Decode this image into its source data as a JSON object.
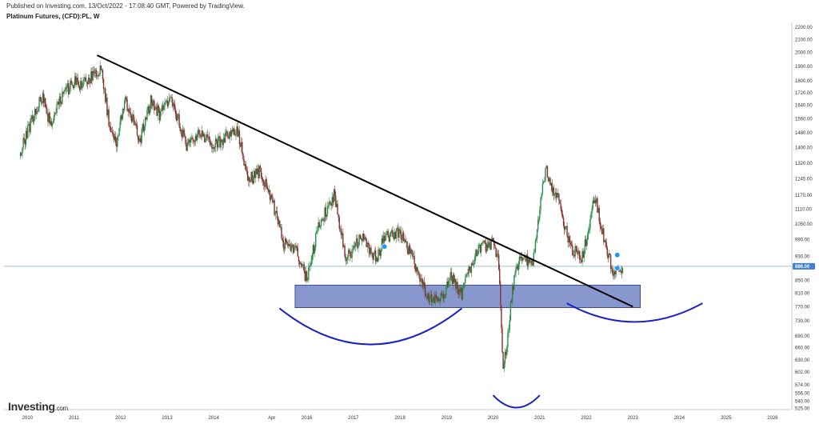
{
  "header": {
    "published": "Published on Investing.com, 13/Oct/2022 - 17:08:40 GMT, Powered by TradingView.",
    "title": "Platinum Futures, (CFD):PL, W"
  },
  "logo": {
    "name": "Investing",
    "suffix": ".com"
  },
  "colors": {
    "candle_up": "#2a8c4a",
    "candle_down": "#8b2e2e",
    "trendline": "#000000",
    "support_zone": "#7b8cc8",
    "arcs": "#1a22c8",
    "last_price_line": "#9fc4d8",
    "badge": "#3d7fd8"
  },
  "chart_data": {
    "type": "candlestick",
    "title": "Platinum Futures, (CFD):PL, W",
    "y_axis": {
      "scale": "log",
      "ylim": [
        523,
        2240
      ],
      "ticks": [
        525.0,
        540.0,
        556.0,
        574.0,
        602.0,
        630.0,
        660.0,
        690.0,
        730.0,
        770.0,
        810.0,
        850.0,
        896.0,
        930.0,
        990.0,
        1050.0,
        1110.0,
        1170.0,
        1245.0,
        1320.0,
        1400.0,
        1480.0,
        1560.0,
        1640.0,
        1720.0,
        1800.0,
        1900.0,
        2000.0,
        2100.0,
        2200.0
      ],
      "tick_labels": [
        "525.00",
        "540.00",
        "556.00",
        "574.00",
        "602.00",
        "630.00",
        "660.00",
        "690.00",
        "730.00",
        "770.00",
        "810.00",
        "850.00",
        "896.00",
        "930.00",
        "990.00",
        "1050.00",
        "1110.00",
        "1170.00",
        "1245.00",
        "1320.00",
        "1400.00",
        "1480.00",
        "1560.00",
        "1640.00",
        "1720.00",
        "1800.00",
        "1900.00",
        "2000.00",
        "2100.00",
        "2200.00"
      ]
    },
    "x_axis": {
      "xlim": [
        "2009-07-01",
        "2026-06-01"
      ],
      "ticks": [
        "2010",
        "2011",
        "2012",
        "2013",
        "2014",
        "Apr",
        "2016",
        "2017",
        "2018",
        "2019",
        "2020",
        "2021",
        "2022",
        "2023",
        "2024",
        "2025",
        "2026"
      ],
      "tick_dates": [
        "2010-01-01",
        "2011-01-01",
        "2012-01-01",
        "2013-01-01",
        "2014-01-01",
        "2015-04-01",
        "2016-01-01",
        "2017-01-01",
        "2018-01-01",
        "2019-01-01",
        "2020-01-01",
        "2021-01-01",
        "2022-01-01",
        "2023-01-01",
        "2024-01-01",
        "2025-01-01",
        "2026-01-01"
      ]
    },
    "last_price": {
      "value": 896.0,
      "label": "896.00"
    },
    "series_path": [
      [
        "2009-11-01",
        1360
      ],
      [
        "2010-02-01",
        1550
      ],
      [
        "2010-05-01",
        1700
      ],
      [
        "2010-07-01",
        1520
      ],
      [
        "2010-10-01",
        1700
      ],
      [
        "2011-01-01",
        1790
      ],
      [
        "2011-03-01",
        1770
      ],
      [
        "2011-05-01",
        1810
      ],
      [
        "2011-08-01",
        1880
      ],
      [
        "2011-10-01",
        1550
      ],
      [
        "2011-12-01",
        1420
      ],
      [
        "2012-02-01",
        1680
      ],
      [
        "2012-06-01",
        1440
      ],
      [
        "2012-09-01",
        1680
      ],
      [
        "2012-11-01",
        1580
      ],
      [
        "2013-02-01",
        1700
      ],
      [
        "2013-06-01",
        1400
      ],
      [
        "2013-09-01",
        1480
      ],
      [
        "2014-01-01",
        1410
      ],
      [
        "2014-07-01",
        1500
      ],
      [
        "2014-10-01",
        1240
      ],
      [
        "2015-01-01",
        1280
      ],
      [
        "2015-04-01",
        1150
      ],
      [
        "2015-07-01",
        980
      ],
      [
        "2015-10-01",
        960
      ],
      [
        "2016-01-01",
        850
      ],
      [
        "2016-04-01",
        1040
      ],
      [
        "2016-08-01",
        1170
      ],
      [
        "2016-11-01",
        920
      ],
      [
        "2017-03-01",
        1000
      ],
      [
        "2017-07-01",
        920
      ],
      [
        "2017-09-01",
        1000
      ],
      [
        "2018-01-01",
        1020
      ],
      [
        "2018-05-01",
        900
      ],
      [
        "2018-08-01",
        800
      ],
      [
        "2018-12-01",
        800
      ],
      [
        "2019-02-01",
        860
      ],
      [
        "2019-05-01",
        810
      ],
      [
        "2019-09-01",
        960
      ],
      [
        "2020-01-01",
        980
      ],
      [
        "2020-02-15",
        900
      ],
      [
        "2020-03-20",
        595
      ],
      [
        "2020-06-01",
        820
      ],
      [
        "2020-08-01",
        940
      ],
      [
        "2020-11-01",
        900
      ],
      [
        "2021-01-01",
        1100
      ],
      [
        "2021-02-15",
        1300
      ],
      [
        "2021-04-01",
        1220
      ],
      [
        "2021-06-01",
        1140
      ],
      [
        "2021-09-01",
        960
      ],
      [
        "2021-12-01",
        930
      ],
      [
        "2022-02-01",
        1060
      ],
      [
        "2022-03-08",
        1170
      ],
      [
        "2022-06-01",
        960
      ],
      [
        "2022-08-15",
        860
      ],
      [
        "2022-10-13",
        896
      ]
    ],
    "annotations": {
      "trendline": [
        [
          "2011-07-01",
          1980
        ],
        [
          "2023-01-01",
          770
        ]
      ],
      "support_zone": {
        "x": [
          "2015-10-01",
          "2023-03-01"
        ],
        "y": [
          767,
          835
        ]
      },
      "arcs": [
        {
          "x": [
            "2015-06-01",
            "2019-05-01"
          ],
          "y_ends": 765,
          "y_mid": 668
        },
        {
          "x": [
            "2020-01-01",
            "2021-01-01"
          ],
          "y_ends": 552,
          "y_mid": 527
        },
        {
          "x": [
            "2021-08-01",
            "2024-07-01"
          ],
          "y_ends": 780,
          "y_mid": 727
        }
      ],
      "markers": [
        [
          "2017-09-01",
          965
        ],
        [
          "2022-09-01",
          935
        ],
        [
          "2022-09-01",
          890
        ]
      ]
    }
  }
}
